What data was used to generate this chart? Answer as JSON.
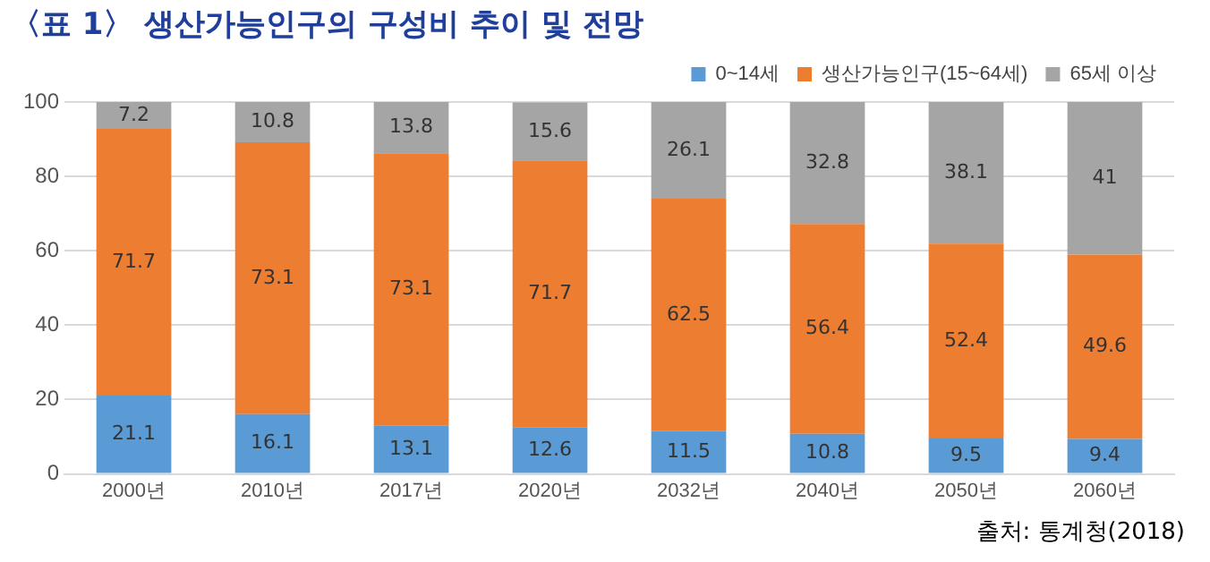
{
  "chart_data": {
    "type": "bar",
    "title": "〈표 1〉 생산가능인구의 구성비 추이 및 전망",
    "categories": [
      "2000년",
      "2010년",
      "2017년",
      "2020년",
      "2032년",
      "2040년",
      "2050년",
      "2060년"
    ],
    "series": [
      {
        "name": "0~14세",
        "color": "#5b9bd5",
        "values": [
          21.1,
          16.1,
          13.1,
          12.6,
          11.5,
          10.8,
          9.5,
          9.4
        ]
      },
      {
        "name": "생산가능인구(15~64세)",
        "color": "#ed7d31",
        "values": [
          71.7,
          73.1,
          73.1,
          71.7,
          62.5,
          56.4,
          52.4,
          49.6
        ]
      },
      {
        "name": "65세 이상",
        "color": "#a5a5a5",
        "values": [
          7.2,
          10.8,
          13.8,
          15.6,
          26.1,
          32.8,
          38.1,
          41
        ]
      }
    ],
    "stacked": true,
    "ylim": [
      0,
      100
    ],
    "yticks": [
      0,
      20,
      40,
      60,
      80,
      100
    ],
    "grid": "y",
    "legend": "top right",
    "data_labels": true,
    "annotations": [
      "출처: 통계청(2018)"
    ]
  }
}
